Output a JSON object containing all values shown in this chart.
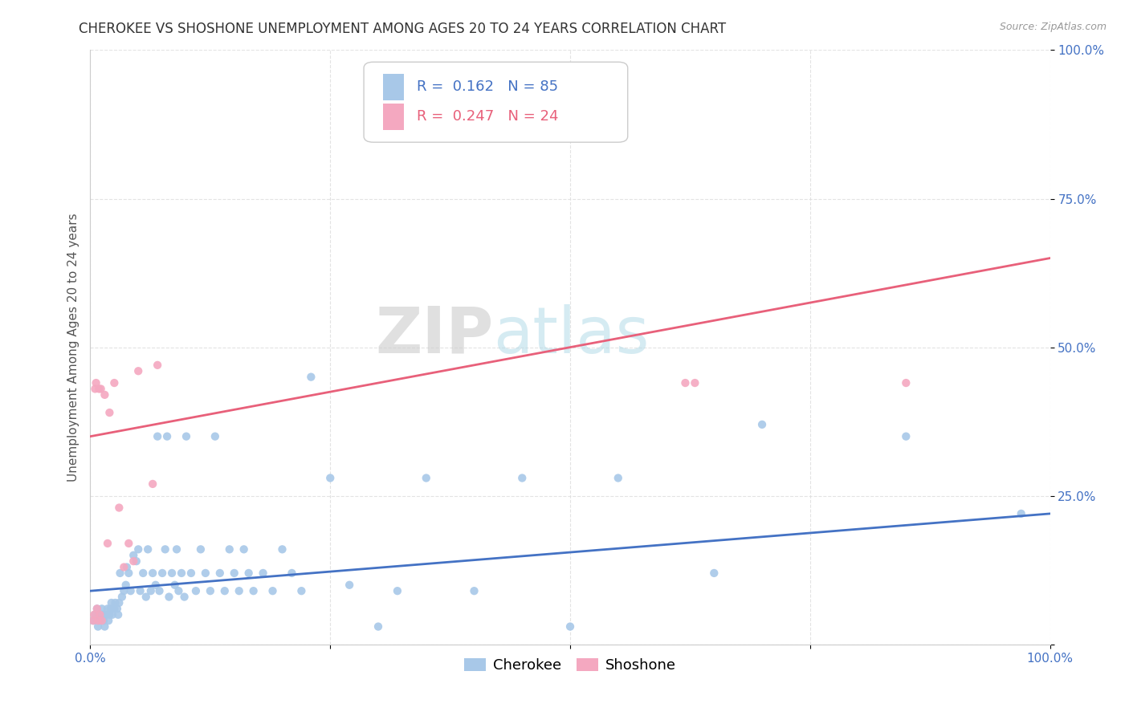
{
  "title": "CHEROKEE VS SHOSHONE UNEMPLOYMENT AMONG AGES 20 TO 24 YEARS CORRELATION CHART",
  "source": "Source: ZipAtlas.com",
  "ylabel": "Unemployment Among Ages 20 to 24 years",
  "xlim": [
    0,
    1
  ],
  "ylim": [
    0,
    1
  ],
  "xtick_positions": [
    0.0,
    0.25,
    0.5,
    0.75,
    1.0
  ],
  "xticklabels": [
    "0.0%",
    "",
    "",
    "",
    "100.0%"
  ],
  "ytick_positions": [
    0.0,
    0.25,
    0.5,
    0.75,
    1.0
  ],
  "yticklabels": [
    "",
    "25.0%",
    "50.0%",
    "75.0%",
    "100.0%"
  ],
  "watermark_zip": "ZIP",
  "watermark_atlas": "atlas",
  "cherokee_color": "#A8C8E8",
  "shoshone_color": "#F4A8C0",
  "cherokee_line_color": "#4472C4",
  "shoshone_line_color": "#E8607A",
  "tick_color": "#4472C4",
  "cherokee_R": 0.162,
  "cherokee_N": 85,
  "shoshone_R": 0.247,
  "shoshone_N": 24,
  "cherokee_x": [
    0.003,
    0.005,
    0.007,
    0.008,
    0.009,
    0.01,
    0.012,
    0.013,
    0.014,
    0.015,
    0.016,
    0.018,
    0.019,
    0.02,
    0.021,
    0.022,
    0.023,
    0.025,
    0.026,
    0.028,
    0.029,
    0.03,
    0.031,
    0.033,
    0.035,
    0.037,
    0.038,
    0.04,
    0.042,
    0.045,
    0.048,
    0.05,
    0.052,
    0.055,
    0.058,
    0.06,
    0.063,
    0.065,
    0.068,
    0.07,
    0.072,
    0.075,
    0.078,
    0.08,
    0.082,
    0.085,
    0.088,
    0.09,
    0.092,
    0.095,
    0.098,
    0.1,
    0.105,
    0.11,
    0.115,
    0.12,
    0.125,
    0.13,
    0.135,
    0.14,
    0.145,
    0.15,
    0.155,
    0.16,
    0.165,
    0.17,
    0.18,
    0.19,
    0.2,
    0.21,
    0.22,
    0.23,
    0.25,
    0.27,
    0.3,
    0.32,
    0.35,
    0.4,
    0.45,
    0.5,
    0.55,
    0.65,
    0.7,
    0.85,
    0.97
  ],
  "cherokee_y": [
    0.04,
    0.05,
    0.06,
    0.03,
    0.05,
    0.04,
    0.06,
    0.05,
    0.04,
    0.03,
    0.05,
    0.06,
    0.04,
    0.05,
    0.06,
    0.07,
    0.05,
    0.06,
    0.07,
    0.06,
    0.05,
    0.07,
    0.12,
    0.08,
    0.09,
    0.1,
    0.13,
    0.12,
    0.09,
    0.15,
    0.14,
    0.16,
    0.09,
    0.12,
    0.08,
    0.16,
    0.09,
    0.12,
    0.1,
    0.35,
    0.09,
    0.12,
    0.16,
    0.35,
    0.08,
    0.12,
    0.1,
    0.16,
    0.09,
    0.12,
    0.08,
    0.35,
    0.12,
    0.09,
    0.16,
    0.12,
    0.09,
    0.35,
    0.12,
    0.09,
    0.16,
    0.12,
    0.09,
    0.16,
    0.12,
    0.09,
    0.12,
    0.09,
    0.16,
    0.12,
    0.09,
    0.45,
    0.28,
    0.1,
    0.03,
    0.09,
    0.28,
    0.09,
    0.28,
    0.03,
    0.28,
    0.12,
    0.37,
    0.35,
    0.22
  ],
  "shoshone_x": [
    0.003,
    0.004,
    0.005,
    0.006,
    0.007,
    0.008,
    0.009,
    0.01,
    0.011,
    0.012,
    0.015,
    0.018,
    0.02,
    0.025,
    0.03,
    0.035,
    0.04,
    0.045,
    0.05,
    0.065,
    0.07,
    0.62,
    0.63,
    0.85
  ],
  "shoshone_y": [
    0.04,
    0.05,
    0.43,
    0.44,
    0.06,
    0.04,
    0.43,
    0.05,
    0.43,
    0.04,
    0.42,
    0.17,
    0.39,
    0.44,
    0.23,
    0.13,
    0.17,
    0.14,
    0.46,
    0.27,
    0.47,
    0.44,
    0.44,
    0.44
  ],
  "cherokee_trend_start": 0.09,
  "cherokee_trend_end": 0.22,
  "shoshone_trend_start": 0.35,
  "shoshone_trend_end": 0.65,
  "background_color": "#FFFFFF",
  "grid_color": "#DDDDDD",
  "title_fontsize": 12,
  "label_fontsize": 11,
  "tick_fontsize": 11,
  "legend_fontsize": 13
}
